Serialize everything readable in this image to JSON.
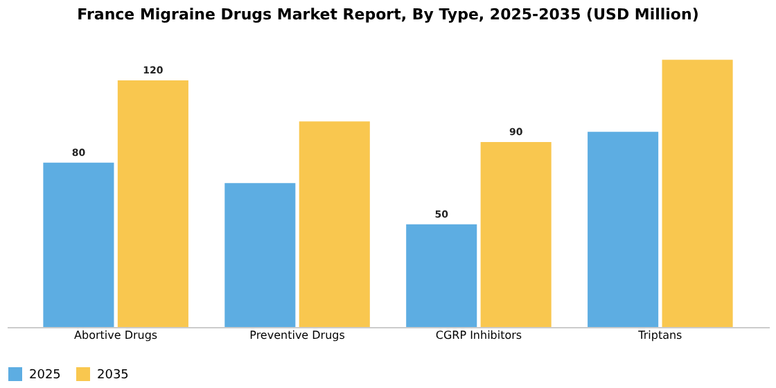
{
  "chart_data": {
    "type": "bar",
    "title": "France Migraine Drugs Market Report, By Type, 2025-2035 (USD Million)",
    "categories": [
      "Abortive Drugs",
      "Preventive Drugs",
      "CGRP Inhibitors",
      "Triptans"
    ],
    "series": [
      {
        "name": "2025",
        "color": "#5dade2",
        "values": [
          80,
          70,
          50,
          95
        ],
        "value_labels": [
          "80",
          null,
          "50",
          null
        ]
      },
      {
        "name": "2035",
        "color": "#f9c74f",
        "values": [
          120,
          100,
          90,
          130
        ],
        "value_labels": [
          "120",
          null,
          "90",
          null
        ]
      }
    ],
    "legend": "bottom",
    "grid": false
  }
}
